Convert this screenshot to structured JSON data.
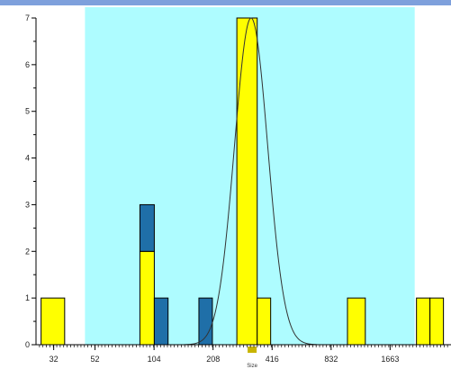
{
  "colors": {
    "top_band": "#7ea0dc",
    "gate": "#aefcff",
    "primary_bar": "#ffff00",
    "secondary_bar": "#1f6fa8",
    "outline": "#000000",
    "curve": "#333333",
    "axis": "#000000"
  },
  "chart_data": {
    "type": "bar",
    "scale": "log2",
    "x_ticks": [
      32,
      52,
      104,
      208,
      416,
      832,
      1663
    ],
    "y_ticks": [
      0,
      1,
      2,
      3,
      4,
      5,
      6,
      7
    ],
    "xlabel": "Size",
    "ylim": [
      0,
      7
    ],
    "xlim": [
      26,
      3400
    ],
    "gate_range": [
      46.2,
      2220
    ],
    "highlight_bin": 329,
    "bars": [
      {
        "x0": 27.6,
        "x1": 36.4,
        "primary": 1,
        "secondary": 0
      },
      {
        "x0": 88.1,
        "x1": 104.3,
        "primary": 2,
        "secondary": 1
      },
      {
        "x0": 104.3,
        "x1": 122.6,
        "primary": 0,
        "secondary": 1
      },
      {
        "x0": 176.1,
        "x1": 206.3,
        "primary": 0,
        "secondary": 1
      },
      {
        "x0": 275.0,
        "x1": 349.2,
        "primary": 7,
        "secondary": 0
      },
      {
        "x0": 349.2,
        "x1": 409.0,
        "primary": 1,
        "secondary": 0
      },
      {
        "x0": 1008.0,
        "x1": 1243.0,
        "primary": 1,
        "secondary": 0
      },
      {
        "x0": 2267.0,
        "x1": 2656.0,
        "primary": 1,
        "secondary": 0
      },
      {
        "x0": 2656.0,
        "x1": 3112.0,
        "primary": 1,
        "secondary": 0
      }
    ],
    "fit_curve": {
      "type": "log-normal",
      "peak_x": 325,
      "peak_y": 7,
      "sigma_log": 0.085
    }
  }
}
